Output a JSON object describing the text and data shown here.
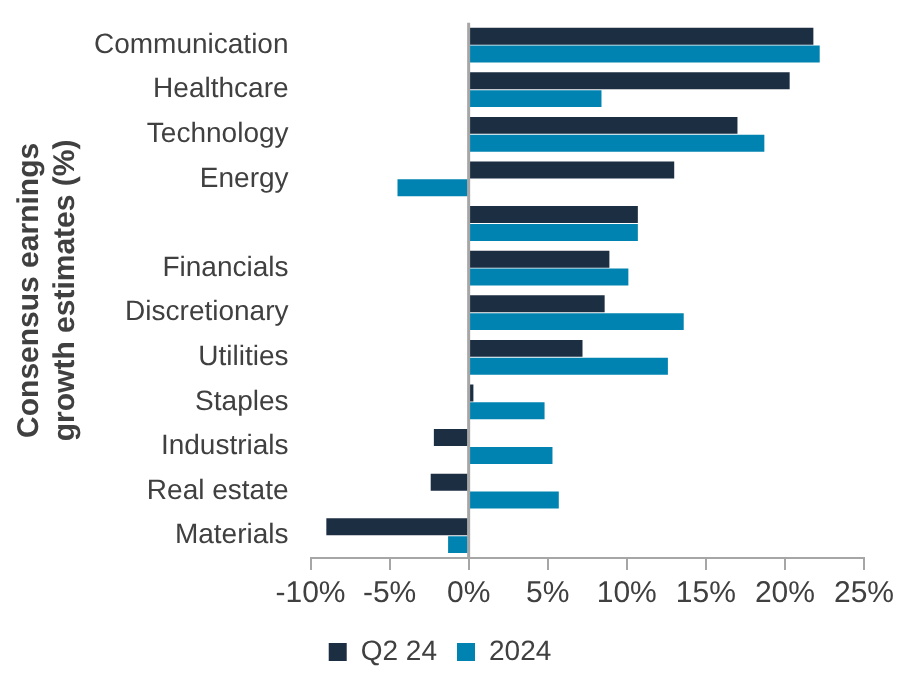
{
  "chart_data": {
    "type": "bar",
    "orientation": "horizontal",
    "ylabel": "Consensus earnings growth estimates (%)",
    "categories": [
      "Communication",
      "Healthcare",
      "Technology",
      "Energy",
      null,
      "Financials",
      "Discretionary",
      "Utilities",
      "Staples",
      "Industrials",
      "Real estate",
      "Materials"
    ],
    "series": [
      {
        "name": "Q2 24",
        "color": "#1c2e42",
        "values": [
          21.8,
          20.3,
          17.0,
          13.0,
          10.7,
          8.9,
          8.6,
          7.2,
          0.3,
          -2.2,
          -2.4,
          -9.0
        ]
      },
      {
        "name": "2024",
        "color": "#0083b0",
        "values": [
          22.2,
          8.4,
          18.7,
          -4.5,
          10.7,
          10.1,
          13.6,
          12.6,
          4.8,
          5.3,
          5.7,
          -1.3
        ]
      }
    ],
    "xlim": [
      -10,
      25
    ],
    "xticks": [
      {
        "value": -10,
        "label": "-10%"
      },
      {
        "value": -5,
        "label": "-5%"
      },
      {
        "value": 0,
        "label": "0%"
      },
      {
        "value": 5,
        "label": "5%"
      },
      {
        "value": 10,
        "label": "10%"
      },
      {
        "value": 15,
        "label": "15%"
      },
      {
        "value": 20,
        "label": "20%"
      },
      {
        "value": 25,
        "label": "25%"
      }
    ],
    "ref_lines": [
      {
        "axis": "x",
        "value": 0,
        "color": "#a6a6a6"
      }
    ],
    "grid": false,
    "legend": "bottom"
  }
}
